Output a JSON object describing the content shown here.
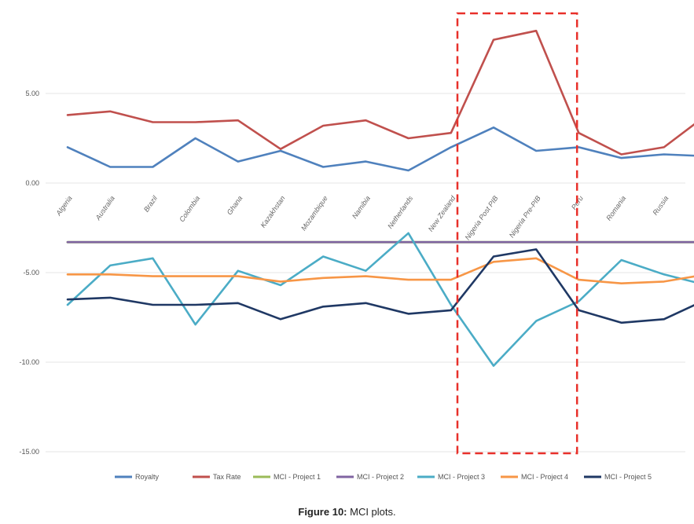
{
  "chart_data": {
    "type": "line",
    "categories": [
      "Algeria",
      "Australia",
      "Brazil",
      "Colombia",
      "Ghana",
      "Kazakhstan",
      "Mozambique",
      "Namibia",
      "Netherlands",
      "New Zealand",
      "Nigeria Post PIB",
      "Nigeria Pre-PIB",
      "Peru",
      "Romania",
      "Russia",
      ""
    ],
    "y_ticks": [
      "5.00",
      "0.00",
      "-5.00",
      "-10.00",
      "-15.00"
    ],
    "ylim": [
      -15,
      8.8
    ],
    "grid": "horizontal",
    "legend_position": "bottom",
    "series": [
      {
        "name": "Royalty",
        "color": "#4f81bd",
        "values": [
          2.0,
          0.9,
          0.9,
          2.5,
          1.2,
          1.8,
          0.9,
          1.2,
          0.7,
          2.0,
          3.1,
          1.8,
          2.0,
          1.4,
          1.6,
          1.5
        ]
      },
      {
        "name": "Tax Rate",
        "color": "#c0504d",
        "values": [
          3.8,
          4.0,
          3.4,
          3.4,
          3.5,
          1.9,
          3.2,
          3.5,
          2.5,
          2.8,
          8.0,
          8.5,
          2.8,
          1.6,
          2.0,
          3.8
        ]
      },
      {
        "name": "MCI - Project 1",
        "color": "#9bbb59",
        "values": [
          -3.3,
          -3.3,
          -3.3,
          -3.3,
          -3.3,
          -3.3,
          -3.3,
          -3.3,
          -3.3,
          -3.3,
          -3.3,
          -3.3,
          -3.3,
          -3.3,
          -3.3,
          -3.3
        ]
      },
      {
        "name": "MCI - Project 2",
        "color": "#8064a2",
        "values": [
          -3.3,
          -3.3,
          -3.3,
          -3.3,
          -3.3,
          -3.3,
          -3.3,
          -3.3,
          -3.3,
          -3.3,
          -3.3,
          -3.3,
          -3.3,
          -3.3,
          -3.3,
          -3.3
        ]
      },
      {
        "name": "MCI - Project 3",
        "color": "#4bacc6",
        "values": [
          -6.8,
          -4.6,
          -4.2,
          -7.9,
          -4.9,
          -5.7,
          -4.1,
          -4.9,
          -2.8,
          -6.8,
          -10.2,
          -7.7,
          -6.6,
          -4.3,
          -5.1,
          -5.7
        ]
      },
      {
        "name": "MCI - Project 4",
        "color": "#f79646",
        "values": [
          -5.1,
          -5.1,
          -5.2,
          -5.2,
          -5.2,
          -5.5,
          -5.3,
          -5.2,
          -5.4,
          -5.4,
          -4.4,
          -4.2,
          -5.4,
          -5.6,
          -5.5,
          -5.1
        ]
      },
      {
        "name": "MCI - Project 5",
        "color": "#1f3864",
        "values": [
          -6.5,
          -6.4,
          -6.8,
          -6.8,
          -6.7,
          -7.6,
          -6.9,
          -6.7,
          -7.3,
          -7.1,
          -4.1,
          -3.7,
          -7.1,
          -7.8,
          -7.6,
          -6.5
        ]
      }
    ],
    "highlight": {
      "from_index": 10,
      "to_index": 11,
      "color": "#e8302a"
    }
  },
  "caption": {
    "label": "Figure 10:",
    "text": " MCI plots."
  }
}
